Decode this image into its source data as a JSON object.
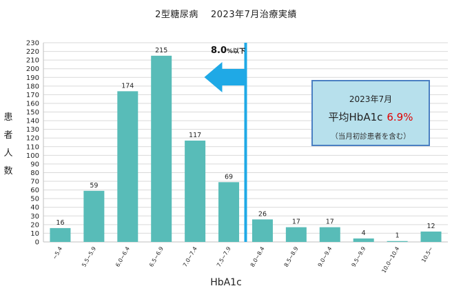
{
  "title": "2型糖尿病　 2023年7月治療実績",
  "ylabel_chars": [
    "患",
    "者",
    "人",
    "数"
  ],
  "xlabel": "HbA1c",
  "threshold": {
    "value_label": "8.0",
    "suffix": "%以下",
    "color": "#1fa9e6"
  },
  "infobox": {
    "line1": "2023年7月",
    "line2_prefix": "平均HbA1c",
    "line2_value": "6.9%",
    "line3": "（当月初診患者を含む）"
  },
  "colors": {
    "bar": "#58bcb8",
    "accent": "#1fa9e6",
    "highlight": "#e00000",
    "box_fill": "#b7e0ec",
    "box_border": "#4a7fc2"
  },
  "chart_data": {
    "type": "bar",
    "categories": [
      "~5.4",
      "5.5~5.9",
      "6.0~6.4",
      "6.5~6.9",
      "7.0~7.4",
      "7.5~7.9",
      "8.0~8.4",
      "8.5~8.9",
      "9.0~9.4",
      "9.5~9.9",
      "10.0~10.4",
      "10.5~"
    ],
    "values": [
      16,
      59,
      174,
      215,
      117,
      69,
      26,
      17,
      17,
      4,
      1,
      12
    ],
    "ylim": [
      0,
      230
    ],
    "yticks": [
      0,
      10,
      20,
      30,
      40,
      50,
      60,
      70,
      80,
      90,
      100,
      110,
      120,
      130,
      140,
      150,
      160,
      170,
      180,
      190,
      200,
      210,
      220,
      230
    ],
    "grid": true,
    "threshold_between": [
      5,
      6
    ]
  }
}
